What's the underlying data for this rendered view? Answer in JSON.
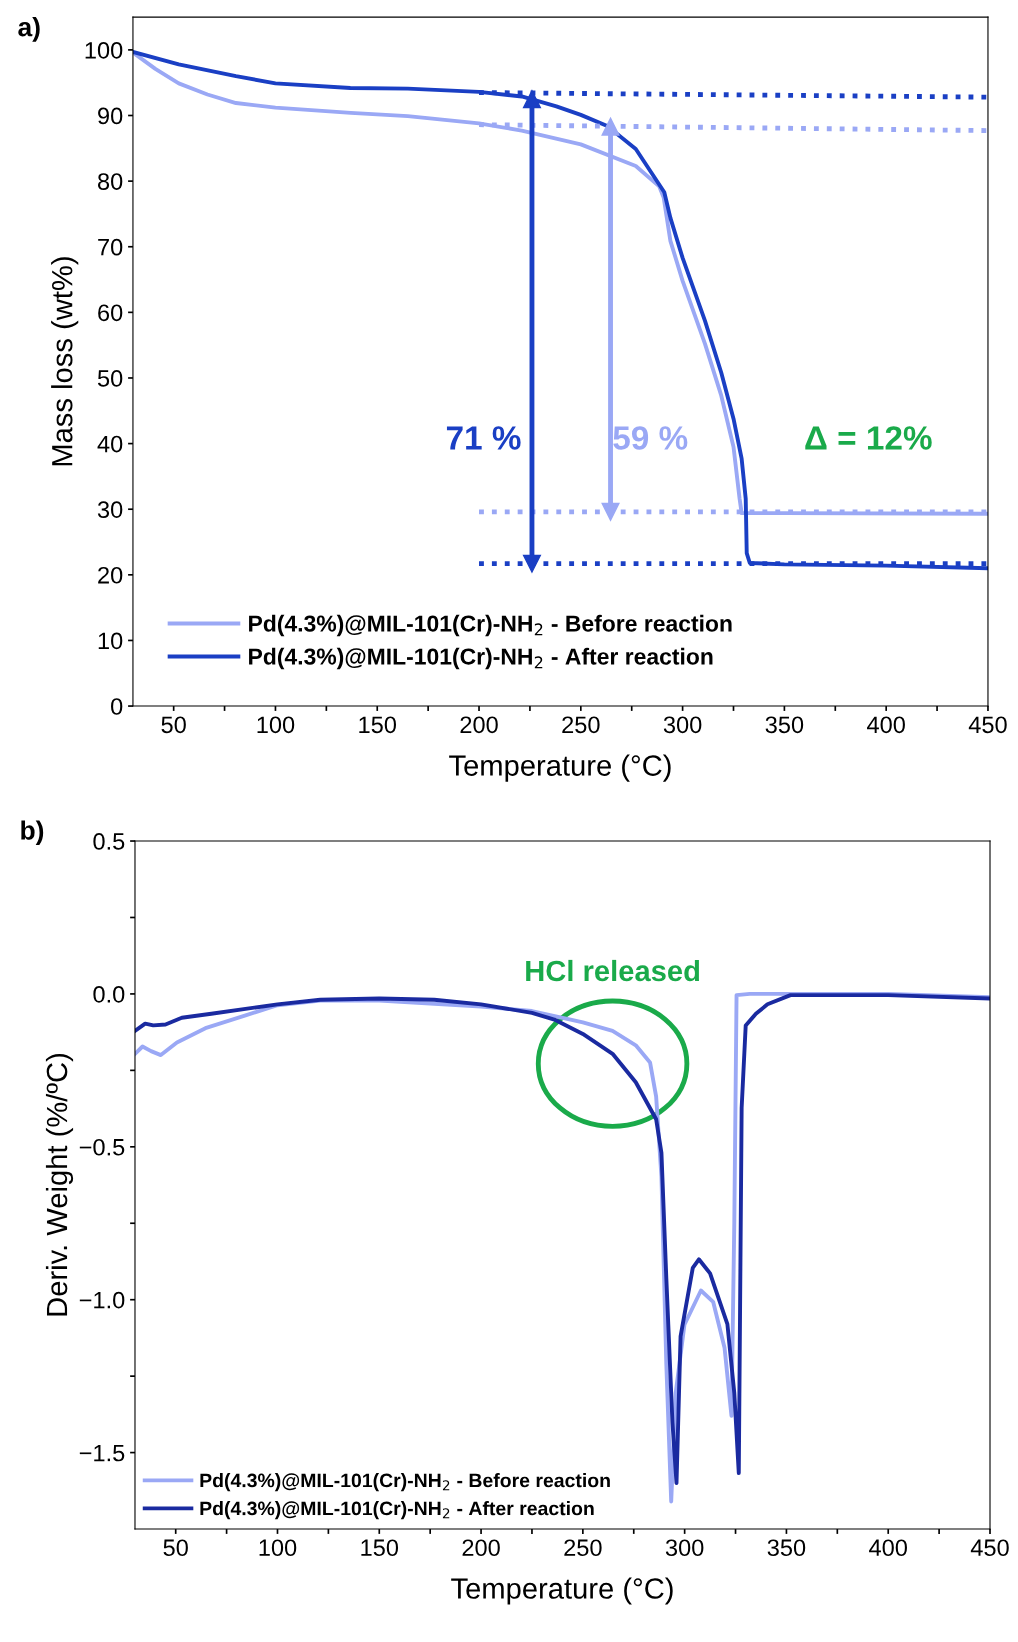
{
  "chart_data": [
    {
      "type": "line",
      "title": "a)",
      "xlabel": "Temperature (°C)",
      "ylabel": "Mass loss (wt%)",
      "xlim": [
        30,
        450
      ],
      "ylim": [
        0,
        105
      ],
      "xticks": [
        50,
        {
          "value": 75,
          "label": null
        },
        100,
        {
          "value": 125,
          "label": null
        },
        150,
        {
          "value": 175,
          "label": null
        },
        200,
        {
          "value": 225,
          "label": null
        },
        250,
        {
          "value": 275,
          "label": null
        },
        300,
        {
          "value": 325,
          "label": null
        },
        350,
        {
          "value": 375,
          "label": null
        },
        400,
        {
          "value": 425,
          "label": null
        },
        450
      ],
      "yticks": [
        0,
        10,
        20,
        30,
        40,
        50,
        60,
        70,
        80,
        90,
        100
      ],
      "grid": false,
      "legend": "bottom left",
      "line_style": "solid",
      "series": [
        {
          "name": "Pd(4.3%)@MIL-101(Cr)-NH$_{2}$ - Before reaction",
          "color": "#9aa8f5",
          "x": [
            30,
            41,
            52.5,
            66.6,
            80.6,
            100,
            137,
            165,
            200,
            221,
            250,
            277,
            288.5,
            290.7,
            294,
            300,
            311,
            319,
            325,
            328,
            329,
            350,
            450
          ],
          "values": [
            99.6,
            97.1,
            94.9,
            93.2,
            91.9,
            91.2,
            90.4,
            89.9,
            88.8,
            87.7,
            85.6,
            82.3,
            79.2,
            77.5,
            70.9,
            64.8,
            55.2,
            47.3,
            39.5,
            31.6,
            29.4,
            29.4,
            29.3
          ]
        },
        {
          "name": "Pd(4.3%)@MIL-101(Cr)-NH$_{2}$ - After reaction",
          "color": "#1a3fc4",
          "x": [
            30,
            52.5,
            80.6,
            100,
            136.8,
            165,
            200,
            221,
            238,
            250,
            263,
            277,
            291,
            294,
            300,
            311,
            319,
            325,
            329,
            331,
            331.5,
            333,
            350,
            400,
            450
          ],
          "values": [
            99.7,
            97.8,
            96,
            94.9,
            94.2,
            94.1,
            93.6,
            92.9,
            91.4,
            90.1,
            88.4,
            84.9,
            78.3,
            74.4,
            68.3,
            58.7,
            50.8,
            43.8,
            37.7,
            31.6,
            23.3,
            21.8,
            21.6,
            21.4,
            21.0
          ]
        },
        {
          "color": "#1a3fc4",
          "line_style": "dotted",
          "x": [
            200,
            450
          ],
          "values": [
            93.5,
            92.8
          ]
        },
        {
          "color": "#9aa8f5",
          "line_style": "dotted",
          "x": [
            200,
            450
          ],
          "values": [
            88.6,
            87.7
          ]
        },
        {
          "color": "#9aa8f5",
          "line_style": "dotted",
          "x": [
            200,
            450
          ],
          "values": [
            29.6,
            29.6
          ]
        },
        {
          "color": "#1a3fc4",
          "line_style": "dotted",
          "x": [
            200,
            450
          ],
          "values": [
            21.7,
            21.7
          ]
        },
        {
          "color": "#1a3fc4",
          "marker": "triangle",
          "x": [
            226,
            226
          ],
          "values": [
            92.5,
            21.7
          ]
        },
        {
          "color": "#9aa8f5",
          "marker": "triangle",
          "x": [
            264.6,
            264.6
          ],
          "values": [
            88.3,
            29.6
          ]
        }
      ],
      "annotations": [
        "71 %",
        "59 %",
        "Δ = 12%"
      ]
    },
    {
      "type": "line",
      "title": "b)",
      "xlabel": "Temperature (°C)",
      "ylabel": "Deriv. Weight (%/ºC)",
      "xlim": [
        30,
        450
      ],
      "ylim": [
        -1.75,
        0.5
      ],
      "xticks": [
        50,
        {
          "value": 75,
          "label": null
        },
        100,
        {
          "value": 125,
          "label": null
        },
        150,
        {
          "value": 175,
          "label": null
        },
        200,
        {
          "value": 225,
          "label": null
        },
        250,
        {
          "value": 275,
          "label": null
        },
        300,
        {
          "value": 325,
          "label": null
        },
        350,
        {
          "value": 375,
          "label": null
        },
        400,
        {
          "value": 425,
          "label": null
        },
        450
      ],
      "yticks": [
        {
          "value": -1.5,
          "label": "−1.5"
        },
        {
          "value": -1.25,
          "label": null
        },
        {
          "value": -1.0,
          "label": "−1.0"
        },
        {
          "value": -0.75,
          "label": null
        },
        {
          "value": -0.5,
          "label": "−0.5"
        },
        {
          "value": -0.25,
          "label": null
        },
        {
          "value": 0.0,
          "label": "0.0"
        },
        {
          "value": 0.25,
          "label": null
        },
        {
          "value": 0.5,
          "label": "0.5"
        }
      ],
      "grid": false,
      "legend": "bottom left",
      "line_style": "solid",
      "series": [
        {
          "name": "Pd(4.3%)@MIL-101(Cr)-NH$_{2}$ - Before reaction",
          "color": "#9aa8f5",
          "x": [
            30,
            33.7,
            37.9,
            42.7,
            50.6,
            64.6,
            100,
            121,
            150,
            200,
            225,
            250,
            264.6,
            276,
            283,
            286,
            288.6,
            291,
            293.4,
            295.6,
            299.9,
            308,
            314,
            319.6,
            323,
            324.4,
            325.5,
            332,
            400,
            450
          ],
          "values": [
            -0.196,
            -0.172,
            -0.187,
            -0.2,
            -0.159,
            -0.112,
            -0.037,
            -0.022,
            -0.022,
            -0.041,
            -0.056,
            -0.093,
            -0.121,
            -0.168,
            -0.224,
            -0.336,
            -0.597,
            -1.21,
            -1.66,
            -1.306,
            -1.082,
            -0.97,
            -1.007,
            -1.157,
            -1.38,
            -0.746,
            -0.004,
            0.0,
            0.0,
            -0.011
          ]
        },
        {
          "name": "Pd(4.3%)@MIL-101(Cr)-NH$_{2}$ - After reaction",
          "color": "#1a2aa0",
          "x": [
            30,
            35,
            39,
            45,
            53,
            67.5,
            100,
            121,
            150,
            177,
            200,
            225,
            236,
            250,
            264.6,
            276,
            286,
            288.6,
            291,
            294,
            296,
            298,
            304,
            307,
            312.5,
            321,
            324.4,
            326.6,
            328,
            330,
            335,
            340.7,
            352,
            400,
            450
          ],
          "values": [
            -0.121,
            -0.097,
            -0.103,
            -0.1,
            -0.078,
            -0.065,
            -0.034,
            -0.019,
            -0.015,
            -0.019,
            -0.034,
            -0.062,
            -0.084,
            -0.131,
            -0.196,
            -0.289,
            -0.41,
            -0.52,
            -0.93,
            -1.4,
            -1.6,
            -1.12,
            -0.896,
            -0.868,
            -0.914,
            -1.08,
            -1.306,
            -1.567,
            -0.373,
            -0.103,
            -0.065,
            -0.034,
            -0.004,
            -0.004,
            -0.015
          ]
        }
      ],
      "annotations": [
        {
          "text": "HCl released",
          "x": 264.6,
          "y": -0.228
        }
      ]
    }
  ]
}
